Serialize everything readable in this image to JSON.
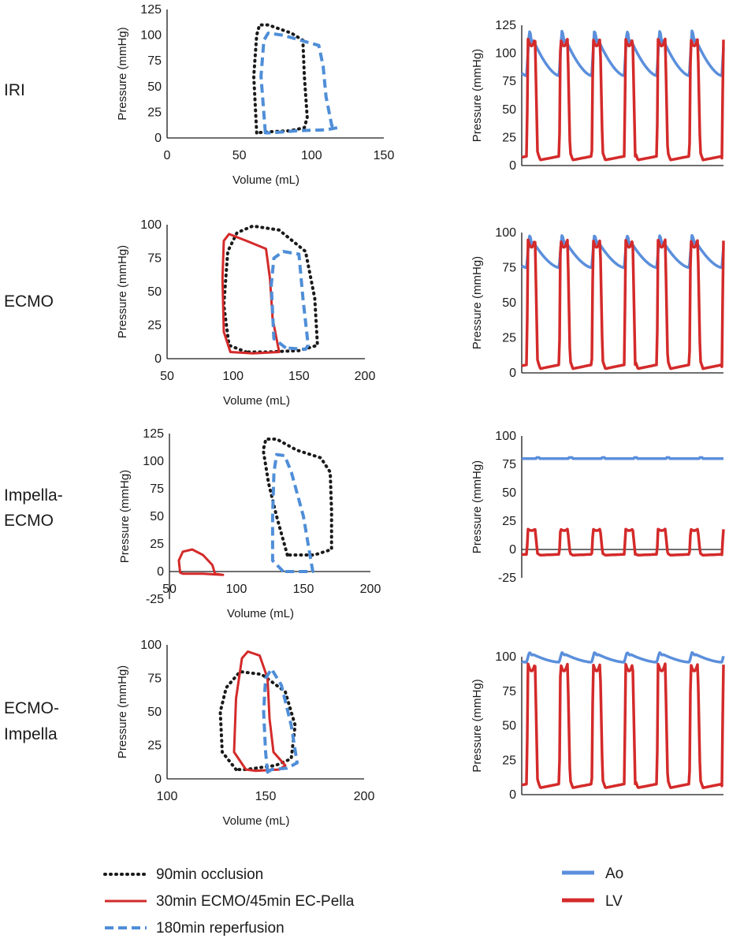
{
  "colors": {
    "occlusion": "#1a1a1a",
    "ecmo_pella": "#d42a2a",
    "reperfusion": "#4f8ed8",
    "ao": "#5b8fdc",
    "lv": "#d42a2a",
    "axis": "#1a1a1a"
  },
  "legend_left": {
    "occlusion": "90min occlusion",
    "ecmo_pella": "30min ECMO/45min EC-Pella",
    "reperfusion": "180min reperfusion"
  },
  "legend_right": {
    "ao": "Ao",
    "lv": "LV"
  },
  "chart_data": [
    {
      "row_label": [
        "IRI"
      ],
      "pv": {
        "type": "line",
        "xlabel": "Volume (mL)",
        "ylabel": "Pressure (mmHg)",
        "xlim": [
          0,
          150
        ],
        "ylim": [
          0,
          125
        ],
        "xticks": [
          "0",
          "50",
          "100",
          "150"
        ],
        "yticks": [
          "0",
          "25",
          "50",
          "75",
          "100",
          "125"
        ],
        "loops": [
          {
            "series": "occlusion",
            "points": [
              [
                62,
                5
              ],
              [
                60,
                60
              ],
              [
                62,
                100
              ],
              [
                64,
                110
              ],
              [
                70,
                110
              ],
              [
                86,
                102
              ],
              [
                94,
                95
              ],
              [
                95,
                60
              ],
              [
                97,
                20
              ],
              [
                95,
                10
              ],
              [
                85,
                7
              ],
              [
                70,
                6
              ],
              [
                62,
                5
              ]
            ]
          },
          {
            "series": "reperfusion",
            "points": [
              [
                68,
                5
              ],
              [
                65,
                60
              ],
              [
                67,
                95
              ],
              [
                70,
                102
              ],
              [
                80,
                100
              ],
              [
                105,
                90
              ],
              [
                108,
                70
              ],
              [
                110,
                40
              ],
              [
                114,
                12
              ],
              [
                118,
                10
              ],
              [
                110,
                8
              ],
              [
                90,
                7
              ],
              [
                72,
                5
              ],
              [
                68,
                5
              ]
            ]
          }
        ]
      },
      "waveform": {
        "type": "line",
        "xlabel": "",
        "ylabel": "Pressure (mmHg)",
        "ylim": [
          0,
          125
        ],
        "yticks": [
          "0",
          "25",
          "50",
          "75",
          "100",
          "125"
        ],
        "beats": 6,
        "ao": {
          "min": 80,
          "max": 120
        },
        "lv": {
          "edp": 5,
          "peak": 113
        },
        "series": [
          "Ao",
          "LV"
        ]
      }
    },
    {
      "row_label": [
        "ECMO"
      ],
      "pv": {
        "type": "line",
        "xlabel": "Volume (mL)",
        "ylabel": "Pressure (mmHg)",
        "xlim": [
          50,
          200
        ],
        "ylim": [
          0,
          100
        ],
        "xticks": [
          "50",
          "100",
          "150",
          "200"
        ],
        "yticks": [
          "0",
          "25",
          "50",
          "75",
          "100"
        ],
        "loops": [
          {
            "series": "occlusion",
            "points": [
              [
                110,
                5
              ],
              [
                97,
                10
              ],
              [
                93,
                40
              ],
              [
                96,
                80
              ],
              [
                103,
                94
              ],
              [
                115,
                99
              ],
              [
                135,
                96
              ],
              [
                155,
                80
              ],
              [
                162,
                45
              ],
              [
                164,
                10
              ],
              [
                150,
                6
              ],
              [
                125,
                5
              ],
              [
                110,
                5
              ]
            ]
          },
          {
            "series": "ecmo_pella",
            "points": [
              [
                98,
                5
              ],
              [
                93,
                20
              ],
              [
                92,
                60
              ],
              [
                93,
                88
              ],
              [
                97,
                93
              ],
              [
                110,
                88
              ],
              [
                125,
                82
              ],
              [
                128,
                60
              ],
              [
                130,
                30
              ],
              [
                135,
                5
              ],
              [
                115,
                4
              ],
              [
                98,
                5
              ]
            ]
          },
          {
            "series": "reperfusion",
            "points": [
              [
                140,
                8
              ],
              [
                131,
                15
              ],
              [
                129,
                55
              ],
              [
                131,
                75
              ],
              [
                138,
                80
              ],
              [
                150,
                78
              ],
              [
                153,
                45
              ],
              [
                157,
                10
              ],
              [
                155,
                7
              ],
              [
                140,
                8
              ]
            ]
          }
        ]
      },
      "waveform": {
        "type": "line",
        "xlabel": "",
        "ylabel": "Pressure (mmHg)",
        "ylim": [
          0,
          100
        ],
        "yticks": [
          "0",
          "25",
          "50",
          "75",
          "100"
        ],
        "beats": 6,
        "ao": {
          "min": 75,
          "max": 98
        },
        "lv": {
          "edp": 3,
          "peak": 95
        },
        "series": [
          "Ao",
          "LV"
        ]
      }
    },
    {
      "row_label": [
        "Impella-",
        "ECMO"
      ],
      "pv": {
        "type": "line",
        "xlabel": "Volume (mL)",
        "ylabel": "Pressure (mmHg)",
        "xlim": [
          50,
          200
        ],
        "ylim": [
          -25,
          125
        ],
        "xticks": [
          "50",
          "100",
          "150",
          "200"
        ],
        "yticks": [
          "-25",
          "0",
          "25",
          "50",
          "75",
          "100",
          "125"
        ],
        "loops": [
          {
            "series": "occlusion",
            "points": [
              [
                138,
                15
              ],
              [
                130,
                50
              ],
              [
                124,
                80
              ],
              [
                120,
                110
              ],
              [
                122,
                120
              ],
              [
                130,
                120
              ],
              [
                145,
                110
              ],
              [
                163,
                103
              ],
              [
                170,
                90
              ],
              [
                171,
                55
              ],
              [
                171,
                20
              ],
              [
                158,
                15
              ],
              [
                138,
                15
              ]
            ]
          },
          {
            "series": "reperfusion",
            "points": [
              [
                135,
                0
              ],
              [
                127,
                10
              ],
              [
                127,
                50
              ],
              [
                128,
                90
              ],
              [
                130,
                106
              ],
              [
                136,
                105
              ],
              [
                141,
                90
              ],
              [
                150,
                50
              ],
              [
                157,
                0
              ],
              [
                143,
                0
              ],
              [
                135,
                0
              ]
            ]
          },
          {
            "series": "ecmo_pella",
            "points": [
              [
                58,
                -1
              ],
              [
                57,
                10
              ],
              [
                60,
                18
              ],
              [
                67,
                20
              ],
              [
                75,
                15
              ],
              [
                82,
                6
              ],
              [
                84,
                -2
              ],
              [
                90,
                -3
              ],
              [
                75,
                -2
              ],
              [
                60,
                -2
              ],
              [
                58,
                -1
              ]
            ]
          }
        ]
      },
      "waveform": {
        "type": "line",
        "xlabel": "",
        "ylabel": "Pressure (mmHg)",
        "ylim": [
          -25,
          100
        ],
        "yticks": [
          "-25",
          "0",
          "25",
          "50",
          "75",
          "100"
        ],
        "beats": 6,
        "ao": {
          "min": 79,
          "max": 81
        },
        "lv": {
          "edp": -5,
          "peak": 18
        },
        "series": [
          "Ao",
          "LV"
        ]
      }
    },
    {
      "row_label": [
        "ECMO-",
        "Impella"
      ],
      "pv": {
        "type": "line",
        "xlabel": "Volume (mL)",
        "ylabel": "Pressure (mmHg)",
        "xlim": [
          100,
          200
        ],
        "ylim": [
          0,
          100
        ],
        "xticks": [
          "100",
          "150",
          "200"
        ],
        "yticks": [
          "0",
          "25",
          "50",
          "75",
          "100"
        ],
        "loops": [
          {
            "series": "occlusion",
            "points": [
              [
                135,
                7
              ],
              [
                128,
                20
              ],
              [
                127,
                50
              ],
              [
                130,
                68
              ],
              [
                137,
                80
              ],
              [
                148,
                78
              ],
              [
                160,
                65
              ],
              [
                165,
                40
              ],
              [
                163,
                15
              ],
              [
                155,
                10
              ],
              [
                140,
                7
              ],
              [
                135,
                7
              ]
            ]
          },
          {
            "series": "ecmo_pella",
            "points": [
              [
                140,
                7
              ],
              [
                134,
                20
              ],
              [
                135,
                60
              ],
              [
                138,
                90
              ],
              [
                141,
                95
              ],
              [
                147,
                92
              ],
              [
                151,
                75
              ],
              [
                152,
                45
              ],
              [
                154,
                20
              ],
              [
                160,
                10
              ],
              [
                157,
                7
              ],
              [
                145,
                6
              ],
              [
                140,
                7
              ]
            ]
          },
          {
            "series": "reperfusion",
            "points": [
              [
                151,
                5
              ],
              [
                150,
                20
              ],
              [
                149,
                50
              ],
              [
                150,
                75
              ],
              [
                153,
                82
              ],
              [
                158,
                70
              ],
              [
                163,
                40
              ],
              [
                166,
                12
              ],
              [
                161,
                8
              ],
              [
                153,
                7
              ],
              [
                151,
                5
              ]
            ]
          }
        ]
      },
      "waveform": {
        "type": "line",
        "xlabel": "",
        "ylabel": "Pressure (mmHg)",
        "ylim": [
          0,
          100
        ],
        "yticks": [
          "0",
          "25",
          "50",
          "75",
          "100"
        ],
        "beats": 6,
        "ao": {
          "min": 96,
          "max": 103
        },
        "lv": {
          "edp": 5,
          "peak": 95
        },
        "series": [
          "Ao",
          "LV"
        ]
      }
    }
  ]
}
